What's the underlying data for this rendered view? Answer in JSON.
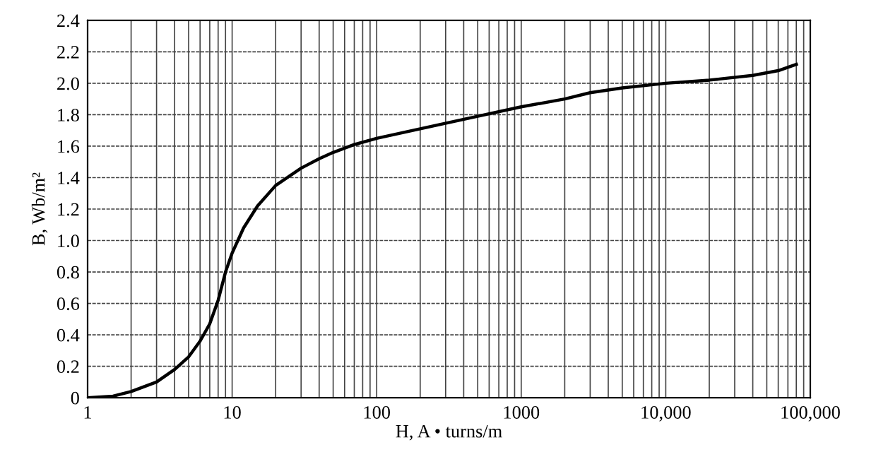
{
  "chart_data": {
    "type": "line",
    "xlabel": "H, A • turns/m",
    "ylabel": "B, Wb/m²",
    "log": "x",
    "grid": true,
    "marker": "none",
    "line_style": "solid",
    "xlim": [
      1,
      100000
    ],
    "ylim": [
      0,
      2.4
    ],
    "xticks": [
      1,
      10,
      100,
      1000,
      {
        "value": 10000,
        "label": "10,000"
      },
      {
        "value": 100000,
        "label": "100,000"
      },
      {
        "value": 2,
        "label": null
      },
      {
        "value": 3,
        "label": null
      },
      {
        "value": 4,
        "label": null
      },
      {
        "value": 5,
        "label": null
      },
      {
        "value": 6,
        "label": null
      },
      {
        "value": 7,
        "label": null
      },
      {
        "value": 8,
        "label": null
      },
      {
        "value": 9,
        "label": null
      },
      {
        "value": 20,
        "label": null
      },
      {
        "value": 30,
        "label": null
      },
      {
        "value": 40,
        "label": null
      },
      {
        "value": 50,
        "label": null
      },
      {
        "value": 60,
        "label": null
      },
      {
        "value": 70,
        "label": null
      },
      {
        "value": 80,
        "label": null
      },
      {
        "value": 90,
        "label": null
      },
      {
        "value": 200,
        "label": null
      },
      {
        "value": 300,
        "label": null
      },
      {
        "value": 400,
        "label": null
      },
      {
        "value": 500,
        "label": null
      },
      {
        "value": 600,
        "label": null
      },
      {
        "value": 700,
        "label": null
      },
      {
        "value": 800,
        "label": null
      },
      {
        "value": 900,
        "label": null
      },
      {
        "value": 2000,
        "label": null
      },
      {
        "value": 3000,
        "label": null
      },
      {
        "value": 4000,
        "label": null
      },
      {
        "value": 5000,
        "label": null
      },
      {
        "value": 6000,
        "label": null
      },
      {
        "value": 7000,
        "label": null
      },
      {
        "value": 8000,
        "label": null
      },
      {
        "value": 9000,
        "label": null
      },
      {
        "value": 20000,
        "label": null
      },
      {
        "value": 30000,
        "label": null
      },
      {
        "value": 40000,
        "label": null
      },
      {
        "value": 50000,
        "label": null
      },
      {
        "value": 60000,
        "label": null
      },
      {
        "value": 70000,
        "label": null
      },
      {
        "value": 80000,
        "label": null
      },
      {
        "value": 90000,
        "label": null
      }
    ],
    "yticks": [
      0,
      {
        "value": 0.2,
        "label": "0.2"
      },
      {
        "value": 0.4,
        "label": "0.4"
      },
      {
        "value": 0.6,
        "label": "0.6"
      },
      {
        "value": 0.8,
        "label": "0.8"
      },
      {
        "value": 1.0,
        "label": "1.0"
      },
      {
        "value": 1.2,
        "label": "1.2"
      },
      {
        "value": 1.4,
        "label": "1.4"
      },
      {
        "value": 1.6,
        "label": "1.6"
      },
      {
        "value": 1.8,
        "label": "1.8"
      },
      {
        "value": 2.0,
        "label": "2.0"
      },
      {
        "value": 2.2,
        "label": "2.2"
      },
      {
        "value": 2.4,
        "label": "2.4"
      }
    ],
    "series": [
      {
        "color": "#000000",
        "x": [
          1,
          1.5,
          2,
          3,
          4,
          5,
          6,
          7,
          8,
          9,
          10,
          12,
          15,
          20,
          30,
          40,
          50,
          70,
          100,
          200,
          500,
          1000,
          2000,
          3000,
          5000,
          10000,
          20000,
          40000,
          60000,
          80000
        ],
        "values": [
          0,
          0.01,
          0.04,
          0.1,
          0.18,
          0.26,
          0.36,
          0.47,
          0.62,
          0.8,
          0.92,
          1.08,
          1.22,
          1.35,
          1.46,
          1.52,
          1.56,
          1.61,
          1.65,
          1.71,
          1.79,
          1.85,
          1.9,
          1.94,
          1.97,
          2.0,
          2.02,
          2.05,
          2.08,
          2.12
        ]
      }
    ]
  }
}
